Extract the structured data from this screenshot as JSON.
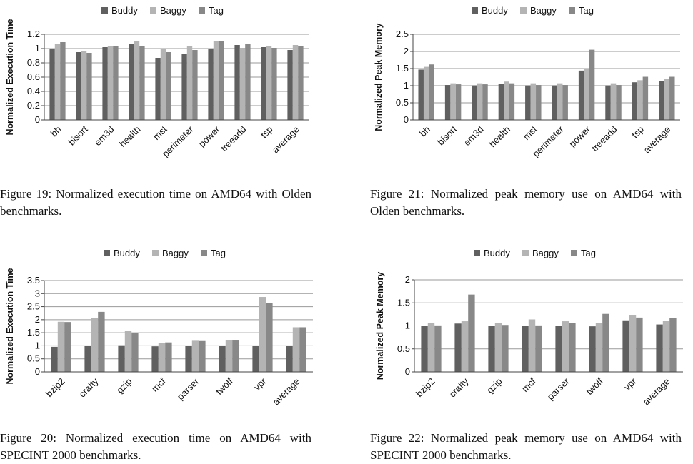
{
  "colors": {
    "Buddy": "#606060",
    "Baggy": "#b4b4b4",
    "Tag": "#888888",
    "grid": "#9a9a9a",
    "axis": "#444444"
  },
  "chart_data": [
    {
      "id": "fig19",
      "type": "bar",
      "ylabel": "Normalized Execution Time",
      "ylim": [
        0,
        1.2
      ],
      "yticks": [
        "0",
        "0.2",
        "0.4",
        "0.6",
        "0.8",
        "1",
        "1.2"
      ],
      "legend_position": "top",
      "grid": true,
      "categories": [
        "bh",
        "bisort",
        "em3d",
        "health",
        "mst",
        "perimeter",
        "power",
        "treeadd",
        "tsp",
        "average"
      ],
      "series": [
        {
          "name": "Buddy",
          "values": [
            1.0,
            0.95,
            1.02,
            1.06,
            0.87,
            0.93,
            0.99,
            1.05,
            1.02,
            0.98
          ]
        },
        {
          "name": "Baggy",
          "values": [
            1.07,
            0.96,
            1.04,
            1.1,
            0.99,
            1.03,
            1.11,
            1.01,
            1.04,
            1.05
          ]
        },
        {
          "name": "Tag",
          "values": [
            1.09,
            0.94,
            1.04,
            1.04,
            0.95,
            0.98,
            1.1,
            1.06,
            1.01,
            1.03
          ]
        }
      ]
    },
    {
      "id": "fig21",
      "type": "bar",
      "ylabel": "Normalized Peak Memory",
      "ylim": [
        0,
        2.5
      ],
      "yticks": [
        "0",
        "0.5",
        "1",
        "1.5",
        "2",
        "2.5"
      ],
      "legend_position": "top",
      "grid": true,
      "categories": [
        "bh",
        "bisort",
        "em3d",
        "health",
        "mst",
        "perimeter",
        "power",
        "treeadd",
        "tsp",
        "average"
      ],
      "series": [
        {
          "name": "Buddy",
          "values": [
            1.47,
            1.02,
            1.01,
            1.05,
            1.01,
            1.01,
            1.44,
            1.01,
            1.1,
            1.14
          ]
        },
        {
          "name": "Baggy",
          "values": [
            1.55,
            1.07,
            1.07,
            1.12,
            1.07,
            1.07,
            1.49,
            1.07,
            1.16,
            1.2
          ]
        },
        {
          "name": "Tag",
          "values": [
            1.62,
            1.04,
            1.04,
            1.07,
            1.02,
            1.02,
            2.05,
            1.02,
            1.26,
            1.26
          ]
        }
      ]
    },
    {
      "id": "fig20",
      "type": "bar",
      "ylabel": "Normalized Execution Time",
      "ylim": [
        0,
        3.5
      ],
      "yticks": [
        "0",
        "0.5",
        "1",
        "1.5",
        "2",
        "2.5",
        "3",
        "3.5"
      ],
      "legend_position": "top",
      "grid": true,
      "categories": [
        "bzip2",
        "crafty",
        "gzip",
        "mcf",
        "parser",
        "twolf",
        "vpr",
        "average"
      ],
      "series": [
        {
          "name": "Buddy",
          "values": [
            0.96,
            1.0,
            1.02,
            0.98,
            1.0,
            1.0,
            1.0,
            1.0
          ]
        },
        {
          "name": "Baggy",
          "values": [
            1.92,
            2.07,
            1.56,
            1.11,
            1.22,
            1.23,
            2.87,
            1.71
          ]
        },
        {
          "name": "Tag",
          "values": [
            1.91,
            2.3,
            1.5,
            1.13,
            1.21,
            1.23,
            2.64,
            1.71
          ]
        }
      ]
    },
    {
      "id": "fig22",
      "type": "bar",
      "ylabel": "Normalized Peak Memory",
      "ylim": [
        0,
        2
      ],
      "yticks": [
        "0",
        "0.5",
        "1",
        "1.5",
        "2"
      ],
      "legend_position": "top",
      "grid": true,
      "categories": [
        "bzip2",
        "crafty",
        "gzip",
        "mcf",
        "parser",
        "twolf",
        "vpr",
        "average"
      ],
      "series": [
        {
          "name": "Buddy",
          "values": [
            1.0,
            1.05,
            1.0,
            1.0,
            1.0,
            0.99,
            1.12,
            1.03
          ]
        },
        {
          "name": "Baggy",
          "values": [
            1.07,
            1.1,
            1.07,
            1.14,
            1.1,
            1.06,
            1.24,
            1.11
          ]
        },
        {
          "name": "Tag",
          "values": [
            1.01,
            1.68,
            1.02,
            1.01,
            1.06,
            1.26,
            1.18,
            1.17
          ]
        }
      ]
    }
  ],
  "captions": {
    "fig19": "Figure 19:  Normalized execution time on AMD64 with Olden benchmarks.",
    "fig21": "Figure 21:  Normalized peak memory use on AMD64 with Olden benchmarks.",
    "fig20": "Figure 20:  Normalized execution time on AMD64 with SPECINT 2000 benchmarks.",
    "fig22": "Figure 22:  Normalized peak memory use on AMD64 with SPECINT 2000 benchmarks."
  }
}
